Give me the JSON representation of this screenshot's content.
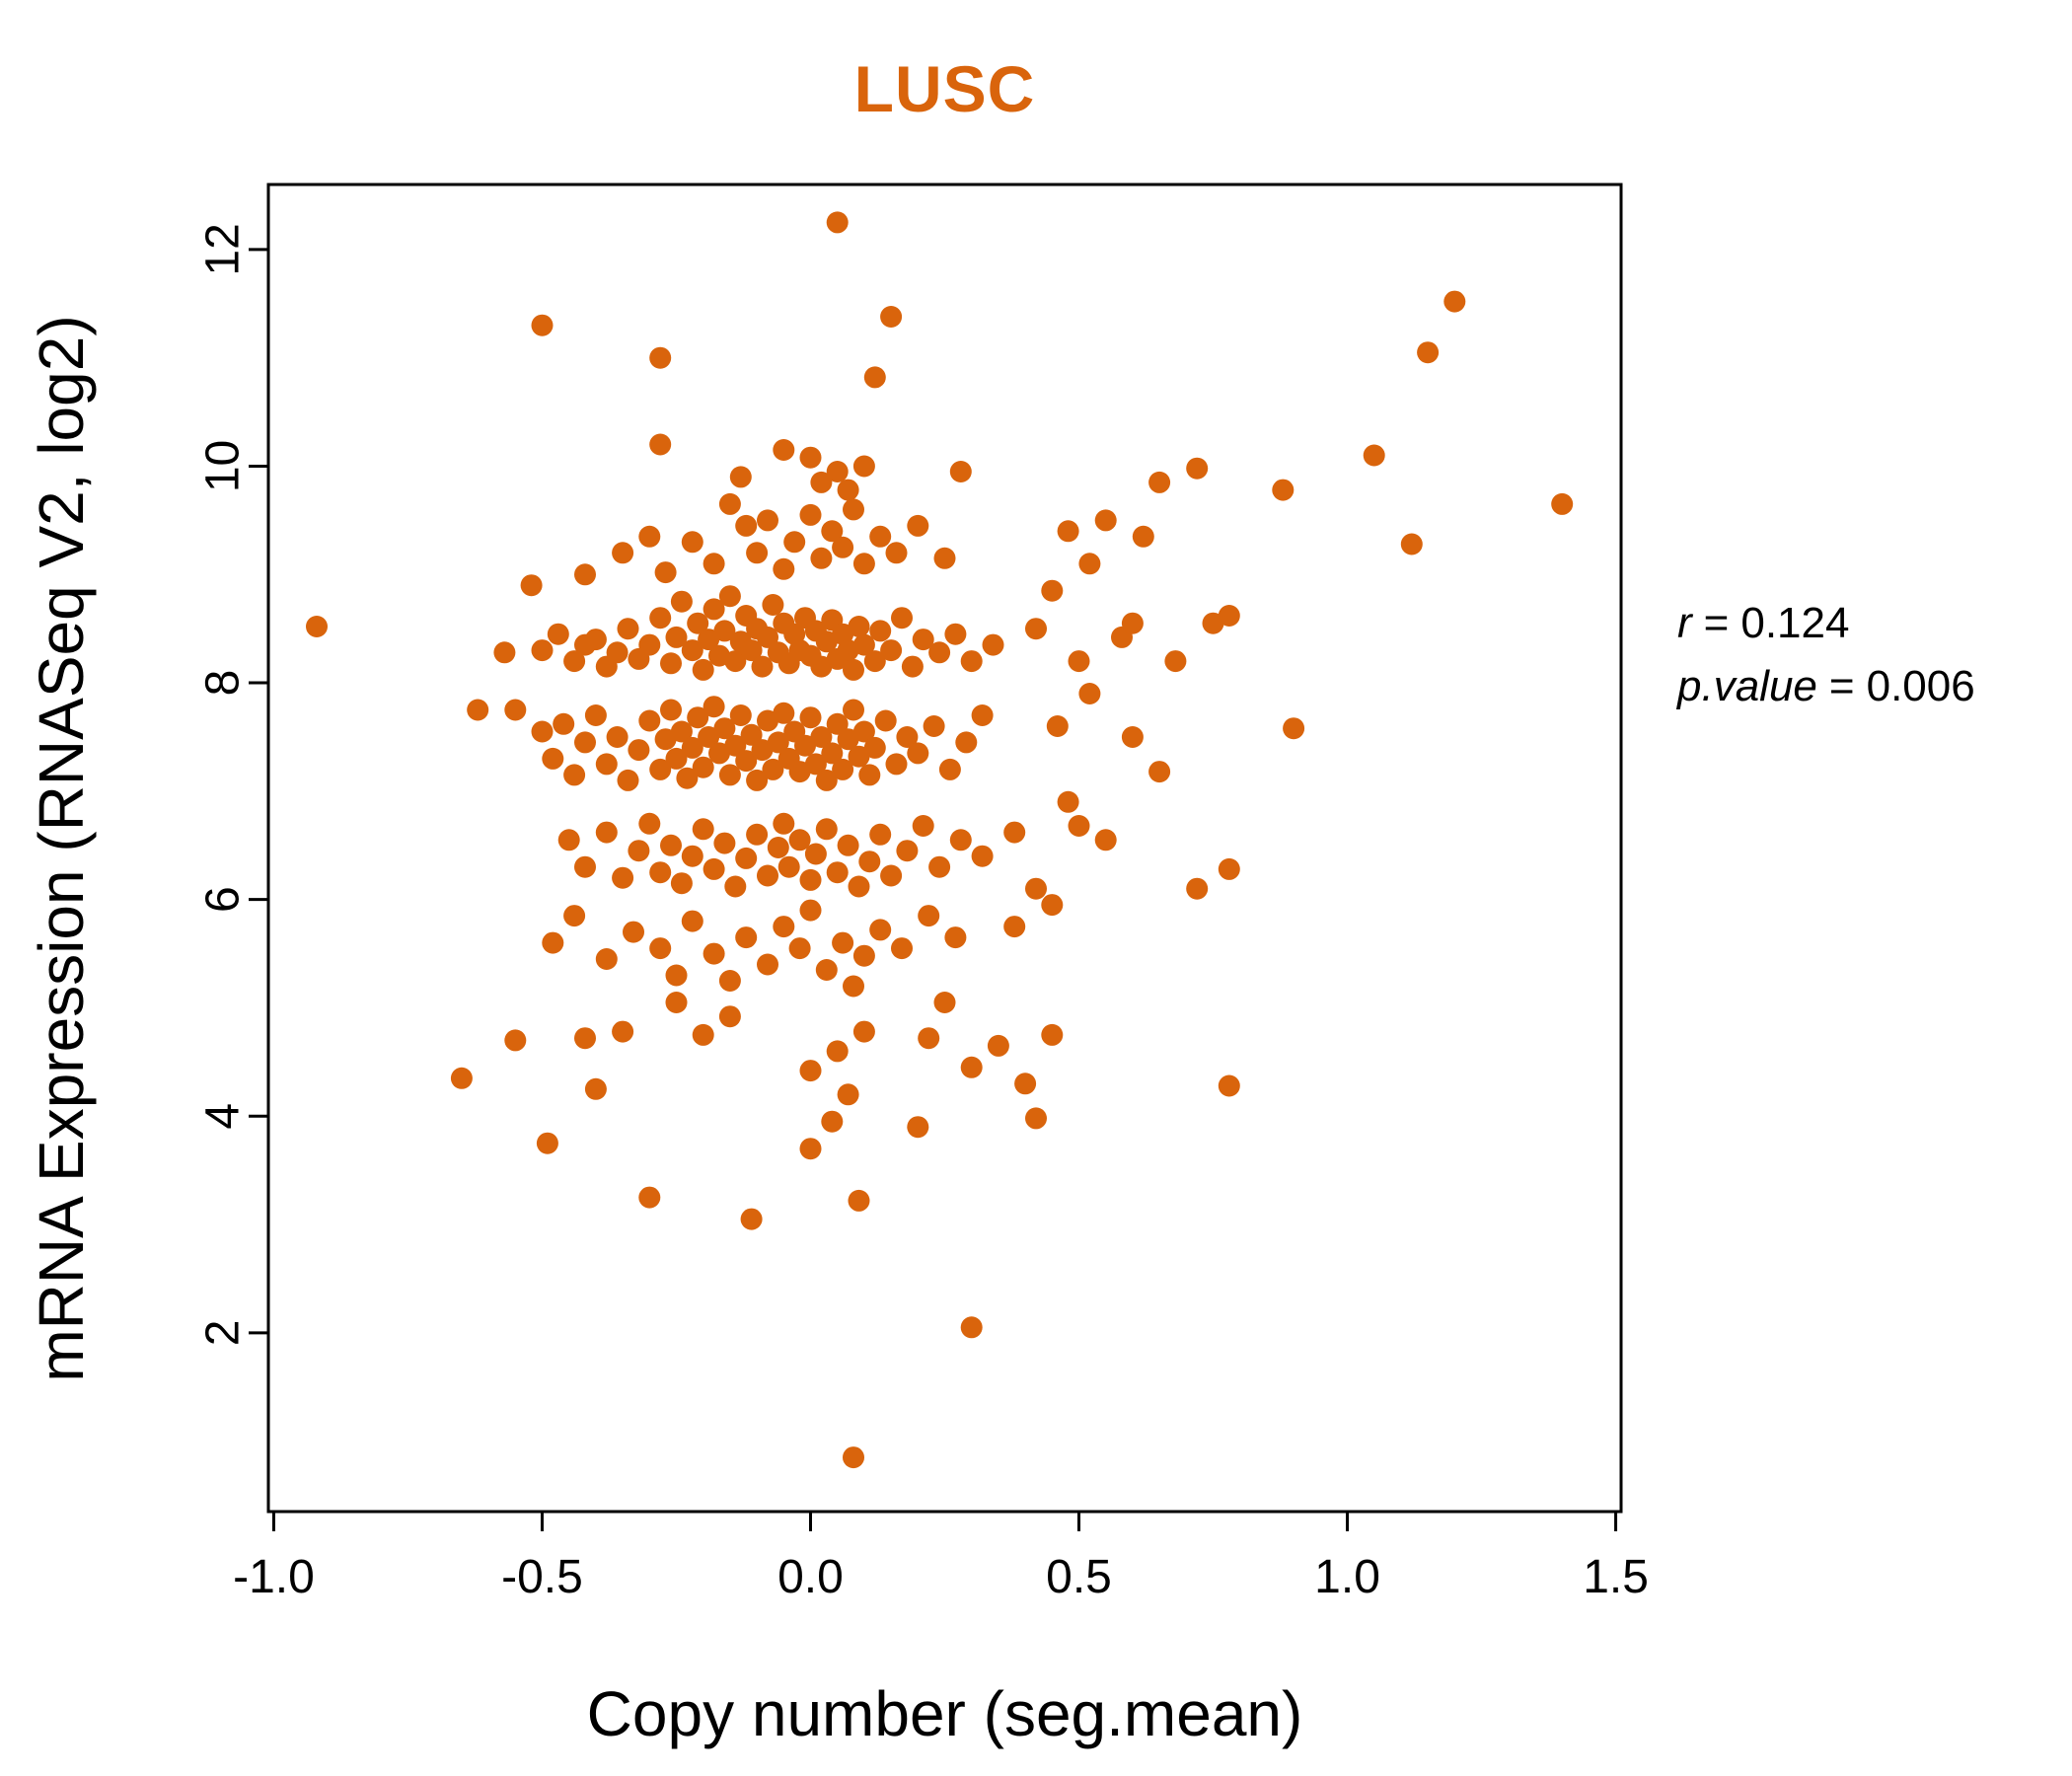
{
  "title": "LUSC",
  "accent_color": "#D9640C",
  "annotation": {
    "lines": [
      {
        "label": "r",
        "eq": "=",
        "value": "0.124"
      },
      {
        "label": "p.value",
        "eq": "=",
        "value": "0.006"
      }
    ]
  },
  "chart_data": {
    "type": "scatter",
    "title": "LUSC",
    "xlabel": "Copy number (seg.mean)",
    "ylabel": "mRNA Expression (RNASeq V2, log2)",
    "xlim": [
      -1.01,
      1.51
    ],
    "ylim": [
      0.35,
      12.6
    ],
    "x_ticks": [
      -1.0,
      -0.5,
      0.0,
      0.5,
      1.0,
      1.5
    ],
    "x_tick_labels": [
      "-1.0",
      "-0.5",
      "0.0",
      "0.5",
      "1.0",
      "1.5"
    ],
    "y_ticks": [
      2,
      4,
      6,
      8,
      10,
      12
    ],
    "y_tick_labels": [
      "2",
      "4",
      "6",
      "8",
      "10",
      "12"
    ],
    "grid": false,
    "legend": "none",
    "point_color": "#D9640C",
    "correlation": {
      "r": 0.124,
      "p_value": 0.006
    },
    "points": [
      [
        -0.92,
        8.52
      ],
      [
        0.05,
        12.25
      ],
      [
        0.15,
        11.38
      ],
      [
        0.12,
        10.82
      ],
      [
        -0.5,
        11.3
      ],
      [
        -0.28,
        11.0
      ],
      [
        1.2,
        11.52
      ],
      [
        1.15,
        11.05
      ],
      [
        1.05,
        10.1
      ],
      [
        1.12,
        9.28
      ],
      [
        1.4,
        9.65
      ],
      [
        0.88,
        9.78
      ],
      [
        0.9,
        7.58
      ],
      [
        0.78,
        4.28
      ],
      [
        0.72,
        6.1
      ],
      [
        0.78,
        6.28
      ],
      [
        0.08,
        0.85
      ],
      [
        0.3,
        2.05
      ],
      [
        -0.11,
        3.05
      ],
      [
        0.09,
        3.22
      ],
      [
        -0.3,
        3.25
      ],
      [
        -0.49,
        3.75
      ],
      [
        0.0,
        3.7
      ],
      [
        0.04,
        3.95
      ],
      [
        0.2,
        3.9
      ],
      [
        0.42,
        3.98
      ],
      [
        0.4,
        4.3
      ],
      [
        -0.65,
        4.35
      ],
      [
        -0.4,
        4.25
      ],
      [
        -0.55,
        4.7
      ],
      [
        -0.42,
        4.72
      ],
      [
        -0.35,
        4.78
      ],
      [
        -0.2,
        4.75
      ],
      [
        -0.15,
        4.92
      ],
      [
        0.05,
        4.6
      ],
      [
        0.1,
        4.78
      ],
      [
        0.22,
        4.72
      ],
      [
        0.35,
        4.65
      ],
      [
        0.07,
        4.2
      ],
      [
        0.0,
        4.42
      ],
      [
        -0.62,
        7.75
      ],
      [
        -0.57,
        8.28
      ],
      [
        0.3,
        4.45
      ],
      [
        0.25,
        5.05
      ],
      [
        -0.25,
        5.05
      ],
      [
        0.45,
        4.75
      ],
      [
        0.42,
        8.5
      ],
      [
        0.45,
        8.85
      ],
      [
        0.48,
        9.4
      ],
      [
        0.5,
        8.2
      ],
      [
        0.52,
        7.9
      ],
      [
        0.55,
        9.5
      ],
      [
        0.58,
        8.42
      ],
      [
        0.6,
        7.5
      ],
      [
        0.62,
        9.35
      ],
      [
        0.65,
        9.85
      ],
      [
        0.68,
        8.2
      ],
      [
        0.72,
        9.98
      ],
      [
        0.75,
        8.55
      ],
      [
        0.78,
        8.62
      ],
      [
        0.65,
        7.18
      ],
      [
        0.55,
        6.55
      ],
      [
        0.48,
        6.9
      ],
      [
        0.45,
        5.95
      ],
      [
        0.42,
        6.1
      ],
      [
        0.38,
        5.75
      ],
      [
        0.5,
        6.68
      ],
      [
        0.6,
        8.55
      ],
      [
        0.52,
        9.1
      ],
      [
        0.46,
        7.6
      ],
      [
        -0.28,
        10.2
      ],
      [
        -0.05,
        10.15
      ],
      [
        0.0,
        10.08
      ],
      [
        0.05,
        9.95
      ],
      [
        0.1,
        10.0
      ],
      [
        0.28,
        9.95
      ],
      [
        -0.13,
        9.9
      ],
      [
        0.02,
        9.85
      ],
      [
        0.07,
        9.78
      ],
      [
        -0.42,
        9.0
      ],
      [
        -0.35,
        9.2
      ],
      [
        -0.3,
        9.35
      ],
      [
        -0.27,
        9.02
      ],
      [
        -0.22,
        9.3
      ],
      [
        -0.18,
        9.1
      ],
      [
        -0.15,
        9.65
      ],
      [
        -0.12,
        9.45
      ],
      [
        -0.1,
        9.2
      ],
      [
        -0.08,
        9.5
      ],
      [
        -0.05,
        9.05
      ],
      [
        -0.03,
        9.3
      ],
      [
        0.0,
        9.55
      ],
      [
        0.02,
        9.15
      ],
      [
        0.04,
        9.4
      ],
      [
        0.06,
        9.25
      ],
      [
        0.08,
        9.6
      ],
      [
        0.1,
        9.1
      ],
      [
        0.13,
        9.35
      ],
      [
        0.16,
        9.2
      ],
      [
        0.2,
        9.45
      ],
      [
        0.25,
        9.15
      ],
      [
        -0.52,
        8.9
      ],
      [
        -0.5,
        8.3
      ],
      [
        -0.47,
        8.45
      ],
      [
        -0.44,
        8.2
      ],
      [
        -0.42,
        8.35
      ],
      [
        -0.4,
        8.4
      ],
      [
        -0.38,
        8.15
      ],
      [
        -0.36,
        8.28
      ],
      [
        -0.34,
        8.5
      ],
      [
        -0.32,
        8.22
      ],
      [
        -0.3,
        8.35
      ],
      [
        -0.28,
        8.6
      ],
      [
        -0.26,
        8.18
      ],
      [
        -0.25,
        8.42
      ],
      [
        -0.24,
        8.75
      ],
      [
        -0.22,
        8.3
      ],
      [
        -0.21,
        8.55
      ],
      [
        -0.2,
        8.12
      ],
      [
        -0.19,
        8.4
      ],
      [
        -0.18,
        8.68
      ],
      [
        -0.17,
        8.25
      ],
      [
        -0.16,
        8.48
      ],
      [
        -0.15,
        8.8
      ],
      [
        -0.14,
        8.2
      ],
      [
        -0.13,
        8.38
      ],
      [
        -0.12,
        8.62
      ],
      [
        -0.11,
        8.3
      ],
      [
        -0.1,
        8.5
      ],
      [
        -0.09,
        8.15
      ],
      [
        -0.08,
        8.42
      ],
      [
        -0.07,
        8.72
      ],
      [
        -0.06,
        8.28
      ],
      [
        -0.05,
        8.55
      ],
      [
        -0.04,
        8.18
      ],
      [
        -0.03,
        8.45
      ],
      [
        -0.02,
        8.3
      ],
      [
        -0.01,
        8.6
      ],
      [
        0.0,
        8.25
      ],
      [
        0.01,
        8.48
      ],
      [
        0.02,
        8.15
      ],
      [
        0.03,
        8.38
      ],
      [
        0.04,
        8.58
      ],
      [
        0.05,
        8.22
      ],
      [
        0.06,
        8.45
      ],
      [
        0.07,
        8.3
      ],
      [
        0.08,
        8.12
      ],
      [
        0.09,
        8.52
      ],
      [
        0.1,
        8.35
      ],
      [
        0.12,
        8.2
      ],
      [
        0.13,
        8.48
      ],
      [
        0.15,
        8.3
      ],
      [
        0.17,
        8.6
      ],
      [
        0.19,
        8.15
      ],
      [
        0.21,
        8.4
      ],
      [
        0.24,
        8.28
      ],
      [
        0.27,
        8.45
      ],
      [
        0.3,
        8.2
      ],
      [
        0.34,
        8.35
      ],
      [
        -0.55,
        7.75
      ],
      [
        -0.5,
        7.55
      ],
      [
        -0.48,
        7.3
      ],
      [
        -0.46,
        7.62
      ],
      [
        -0.44,
        7.15
      ],
      [
        -0.42,
        7.45
      ],
      [
        -0.4,
        7.7
      ],
      [
        -0.38,
        7.25
      ],
      [
        -0.36,
        7.5
      ],
      [
        -0.34,
        7.1
      ],
      [
        -0.32,
        7.38
      ],
      [
        -0.3,
        7.65
      ],
      [
        -0.28,
        7.2
      ],
      [
        -0.27,
        7.48
      ],
      [
        -0.26,
        7.75
      ],
      [
        -0.25,
        7.3
      ],
      [
        -0.24,
        7.55
      ],
      [
        -0.23,
        7.12
      ],
      [
        -0.22,
        7.4
      ],
      [
        -0.21,
        7.68
      ],
      [
        -0.2,
        7.22
      ],
      [
        -0.19,
        7.5
      ],
      [
        -0.18,
        7.78
      ],
      [
        -0.17,
        7.35
      ],
      [
        -0.16,
        7.58
      ],
      [
        -0.15,
        7.15
      ],
      [
        -0.14,
        7.42
      ],
      [
        -0.13,
        7.7
      ],
      [
        -0.12,
        7.28
      ],
      [
        -0.11,
        7.52
      ],
      [
        -0.1,
        7.1
      ],
      [
        -0.09,
        7.38
      ],
      [
        -0.08,
        7.65
      ],
      [
        -0.07,
        7.2
      ],
      [
        -0.06,
        7.45
      ],
      [
        -0.05,
        7.72
      ],
      [
        -0.04,
        7.3
      ],
      [
        -0.03,
        7.55
      ],
      [
        -0.02,
        7.18
      ],
      [
        -0.01,
        7.42
      ],
      [
        0.0,
        7.68
      ],
      [
        0.01,
        7.25
      ],
      [
        0.02,
        7.5
      ],
      [
        0.03,
        7.1
      ],
      [
        0.04,
        7.35
      ],
      [
        0.05,
        7.62
      ],
      [
        0.06,
        7.2
      ],
      [
        0.07,
        7.48
      ],
      [
        0.08,
        7.75
      ],
      [
        0.09,
        7.32
      ],
      [
        0.1,
        7.55
      ],
      [
        0.11,
        7.15
      ],
      [
        0.12,
        7.4
      ],
      [
        0.14,
        7.65
      ],
      [
        0.16,
        7.25
      ],
      [
        0.18,
        7.5
      ],
      [
        0.2,
        7.35
      ],
      [
        0.23,
        7.6
      ],
      [
        0.26,
        7.2
      ],
      [
        0.29,
        7.45
      ],
      [
        0.32,
        7.7
      ],
      [
        -0.45,
        6.55
      ],
      [
        -0.42,
        6.3
      ],
      [
        -0.38,
        6.62
      ],
      [
        -0.35,
        6.2
      ],
      [
        -0.32,
        6.45
      ],
      [
        -0.3,
        6.7
      ],
      [
        -0.28,
        6.25
      ],
      [
        -0.26,
        6.5
      ],
      [
        -0.24,
        6.15
      ],
      [
        -0.22,
        6.4
      ],
      [
        -0.2,
        6.65
      ],
      [
        -0.18,
        6.28
      ],
      [
        -0.16,
        6.52
      ],
      [
        -0.14,
        6.12
      ],
      [
        -0.12,
        6.38
      ],
      [
        -0.1,
        6.6
      ],
      [
        -0.08,
        6.22
      ],
      [
        -0.06,
        6.48
      ],
      [
        -0.05,
        6.7
      ],
      [
        -0.04,
        6.3
      ],
      [
        -0.02,
        6.55
      ],
      [
        0.0,
        6.18
      ],
      [
        0.01,
        6.42
      ],
      [
        0.03,
        6.65
      ],
      [
        0.05,
        6.25
      ],
      [
        0.07,
        6.5
      ],
      [
        0.09,
        6.12
      ],
      [
        0.11,
        6.35
      ],
      [
        0.13,
        6.6
      ],
      [
        0.15,
        6.22
      ],
      [
        0.18,
        6.45
      ],
      [
        0.21,
        6.68
      ],
      [
        0.24,
        6.3
      ],
      [
        0.28,
        6.55
      ],
      [
        0.32,
        6.4
      ],
      [
        0.38,
        6.62
      ],
      [
        -0.48,
        5.6
      ],
      [
        -0.44,
        5.85
      ],
      [
        -0.38,
        5.45
      ],
      [
        -0.33,
        5.7
      ],
      [
        -0.28,
        5.55
      ],
      [
        -0.25,
        5.3
      ],
      [
        -0.22,
        5.8
      ],
      [
        -0.18,
        5.5
      ],
      [
        -0.15,
        5.25
      ],
      [
        -0.12,
        5.65
      ],
      [
        -0.08,
        5.4
      ],
      [
        -0.05,
        5.75
      ],
      [
        -0.02,
        5.55
      ],
      [
        0.0,
        5.9
      ],
      [
        0.03,
        5.35
      ],
      [
        0.06,
        5.6
      ],
      [
        0.08,
        5.2
      ],
      [
        0.1,
        5.48
      ],
      [
        0.13,
        5.72
      ],
      [
        0.17,
        5.55
      ],
      [
        0.22,
        5.85
      ],
      [
        0.27,
        5.65
      ]
    ]
  }
}
